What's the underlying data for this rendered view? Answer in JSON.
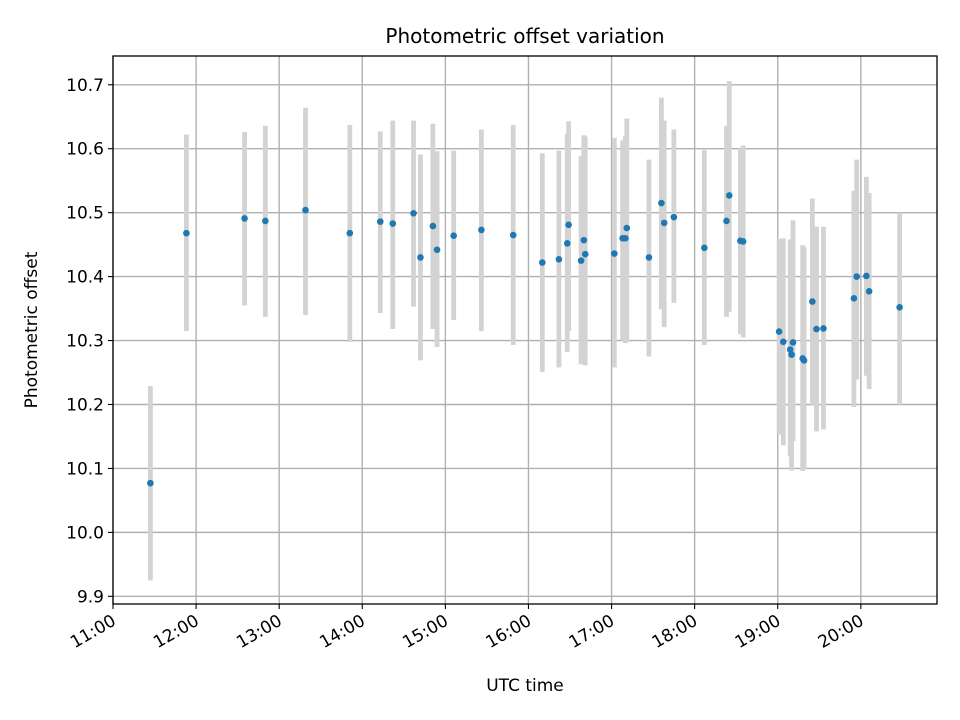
{
  "chart_data": {
    "type": "scatter",
    "title": "Photometric offset variation",
    "xlabel": "UTC time",
    "ylabel": "Photometric offset",
    "xlim": [
      "11:00",
      "20:55"
    ],
    "ylim": [
      9.888,
      10.745
    ],
    "xticks": [
      "11:00",
      "12:00",
      "13:00",
      "14:00",
      "15:00",
      "16:00",
      "17:00",
      "18:00",
      "19:00",
      "20:00"
    ],
    "yticks": [
      "9.9",
      "10.0",
      "10.1",
      "10.2",
      "10.3",
      "10.4",
      "10.5",
      "10.6",
      "10.7"
    ],
    "grid": true,
    "colors": {
      "point": "#1f77b4",
      "errorbar": "#d3d3d3",
      "grid": "#b0b0b0"
    },
    "series": [
      {
        "x": [
          "11:27",
          "11:53",
          "12:35",
          "12:50",
          "13:19",
          "13:51",
          "14:13",
          "14:22",
          "14:37",
          "14:42",
          "14:51",
          "14:54",
          "15:06",
          "15:26",
          "15:49",
          "16:10",
          "16:22",
          "16:28",
          "16:29",
          "16:38",
          "16:40",
          "16:41",
          "17:02",
          "17:08",
          "17:10",
          "17:11",
          "17:27",
          "17:36",
          "17:38",
          "17:45",
          "18:07",
          "18:23",
          "18:25",
          "18:33",
          "18:35",
          "19:01",
          "19:04",
          "19:09",
          "19:10",
          "19:11",
          "19:18",
          "19:19",
          "19:25",
          "19:28",
          "19:33",
          "19:55",
          "19:57",
          "20:04",
          "20:06",
          "20:28"
        ],
        "y": [
          10.077,
          10.468,
          10.491,
          10.487,
          10.504,
          10.468,
          10.486,
          10.483,
          10.499,
          10.43,
          10.479,
          10.442,
          10.464,
          10.473,
          10.465,
          10.422,
          10.427,
          10.452,
          10.481,
          10.425,
          10.457,
          10.435,
          10.436,
          10.46,
          10.46,
          10.476,
          10.43,
          10.515,
          10.484,
          10.493,
          10.445,
          10.487,
          10.527,
          10.456,
          10.455,
          10.314,
          10.298,
          10.286,
          10.278,
          10.297,
          10.272,
          10.269,
          10.361,
          10.318,
          10.319,
          10.366,
          10.4,
          10.401,
          10.377,
          10.352
        ],
        "ylow": [
          9.925,
          10.315,
          10.355,
          10.337,
          10.34,
          10.298,
          10.343,
          10.318,
          10.353,
          10.269,
          10.318,
          10.29,
          10.332,
          10.315,
          10.293,
          10.251,
          10.258,
          10.282,
          10.315,
          10.263,
          10.29,
          10.261,
          10.258,
          10.3,
          10.296,
          10.298,
          10.275,
          10.349,
          10.321,
          10.359,
          10.293,
          10.337,
          10.345,
          10.31,
          10.305,
          10.153,
          10.136,
          10.119,
          10.097,
          10.143,
          10.096,
          10.099,
          10.198,
          10.158,
          10.161,
          10.196,
          10.239,
          10.245,
          10.224,
          10.2
        ],
        "yhigh": [
          10.229,
          10.622,
          10.626,
          10.636,
          10.664,
          10.637,
          10.627,
          10.644,
          10.644,
          10.591,
          10.639,
          10.596,
          10.597,
          10.63,
          10.637,
          10.593,
          10.597,
          10.623,
          10.643,
          10.589,
          10.621,
          10.619,
          10.617,
          10.613,
          10.62,
          10.647,
          10.583,
          10.68,
          10.644,
          10.63,
          10.598,
          10.636,
          10.706,
          10.6,
          10.605,
          10.459,
          10.46,
          10.458,
          10.444,
          10.488,
          10.449,
          10.446,
          10.522,
          10.478,
          10.478,
          10.534,
          10.583,
          10.556,
          10.531,
          10.5
        ]
      }
    ]
  }
}
